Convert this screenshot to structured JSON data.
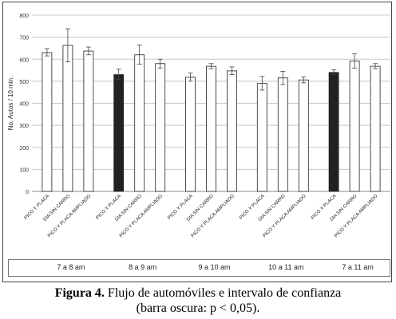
{
  "chart_data": {
    "type": "bar",
    "ylabel": "No. Autos / 10 min.",
    "ylim": [
      0,
      800
    ],
    "yticks": [
      0,
      100,
      200,
      300,
      400,
      500,
      600,
      700,
      800
    ],
    "grid": true,
    "groups": [
      {
        "label": "7 a 8 am",
        "bars": [
          {
            "category": "PICO Y PLACA",
            "value": 630,
            "err_low": 615,
            "err_high": 648,
            "dark": false
          },
          {
            "category": "DIA SIN CARRO",
            "value": 663,
            "err_low": 588,
            "err_high": 738,
            "dark": false
          },
          {
            "category": "PICO Y PLACA AMPLIADO",
            "value": 637,
            "err_low": 620,
            "err_high": 655,
            "dark": false
          }
        ]
      },
      {
        "label": "8 a 9 am",
        "bars": [
          {
            "category": "PICO Y PLACA",
            "value": 530,
            "err_low": 508,
            "err_high": 555,
            "dark": true
          },
          {
            "category": "DIA SIN CARRO",
            "value": 620,
            "err_low": 578,
            "err_high": 665,
            "dark": false
          },
          {
            "category": "PICO Y PLACA AMPLIADO",
            "value": 580,
            "err_low": 560,
            "err_high": 600,
            "dark": false
          }
        ]
      },
      {
        "label": "9 a 10 am",
        "bars": [
          {
            "category": "PICO Y PLACA",
            "value": 518,
            "err_low": 500,
            "err_high": 537,
            "dark": false
          },
          {
            "category": "DIA SIN CARRO",
            "value": 568,
            "err_low": 557,
            "err_high": 580,
            "dark": false
          },
          {
            "category": "PICO Y PLACA AMPLIADO",
            "value": 547,
            "err_low": 530,
            "err_high": 565,
            "dark": false
          }
        ]
      },
      {
        "label": "10 a 11 am",
        "bars": [
          {
            "category": "PICO Y PLACA",
            "value": 490,
            "err_low": 460,
            "err_high": 522,
            "dark": false
          },
          {
            "category": "DIA SIN CARRO",
            "value": 515,
            "err_low": 485,
            "err_high": 545,
            "dark": false
          },
          {
            "category": "PICO Y PLACA AMPLIADO",
            "value": 506,
            "err_low": 493,
            "err_high": 520,
            "dark": false
          }
        ]
      },
      {
        "label": "7 a 11 am",
        "bars": [
          {
            "category": "PICO Y PLACA",
            "value": 540,
            "err_low": 530,
            "err_high": 552,
            "dark": true
          },
          {
            "category": "DIA SIN CARRO",
            "value": 592,
            "err_low": 560,
            "err_high": 625,
            "dark": false
          },
          {
            "category": "PICO Y PLACA AMPLIADO",
            "value": 568,
            "err_low": 557,
            "err_high": 580,
            "dark": false
          }
        ]
      }
    ],
    "colors": {
      "dark_bar": "#222222",
      "light_bar": "#ffffff",
      "grid": "#c8c8c8",
      "axis": "#888888"
    }
  },
  "caption": {
    "label": "Figura 4.",
    "line1": "Flujo de automóviles e intervalo de confianza",
    "line2": "(barra oscura: p < 0,05)."
  }
}
